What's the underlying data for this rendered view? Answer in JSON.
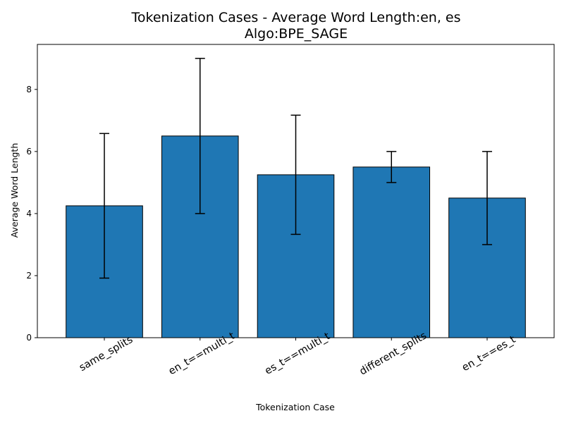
{
  "chart_data": {
    "type": "bar",
    "title": "Tokenization Cases - Average Word Length:en, es",
    "subtitle": "Algo:BPE_SAGE",
    "xlabel": "Tokenization Case",
    "ylabel": "Average Word Length",
    "categories": [
      "same_splits",
      "en_t==multi_t",
      "es_t==multi_t",
      "different_splits",
      "en_t==es_t"
    ],
    "values": [
      4.25,
      6.5,
      5.25,
      5.5,
      4.5
    ],
    "errors": [
      2.33,
      2.5,
      1.92,
      0.5,
      1.5
    ],
    "ylim": [
      0,
      9.45
    ],
    "yticks": [
      0,
      2,
      4,
      6,
      8
    ],
    "bar_color": "#1f77b4",
    "edge_color": "#000000",
    "grid": false
  }
}
